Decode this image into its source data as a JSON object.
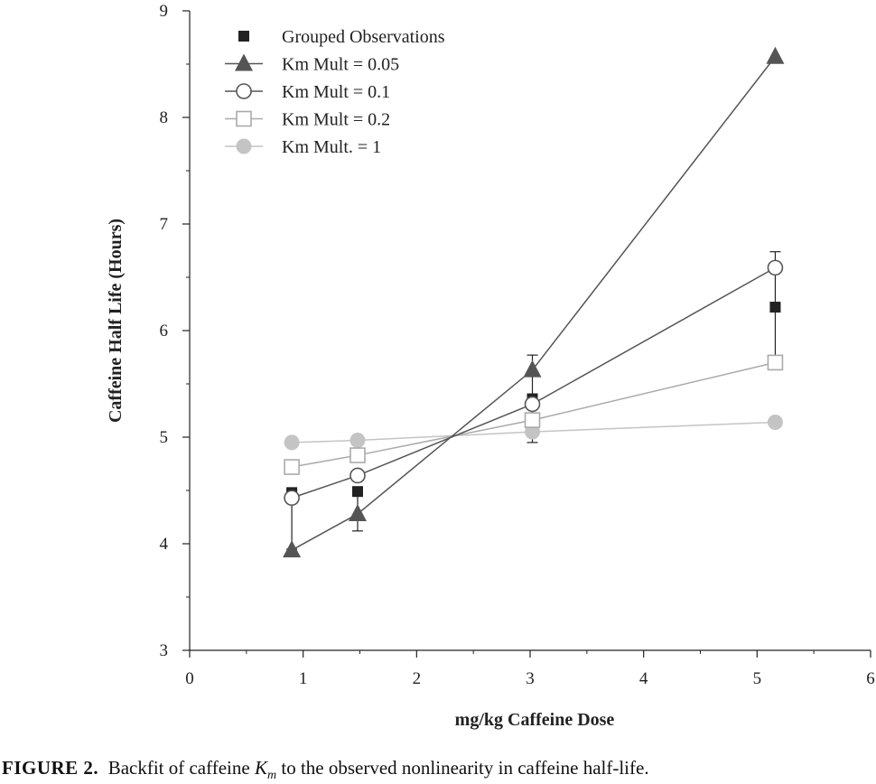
{
  "chart_data": {
    "type": "line",
    "xlabel": "mg/kg Caffeine Dose",
    "ylabel": "Caffeine Half Life (Hours)",
    "xlim": [
      0,
      6
    ],
    "ylim": [
      3,
      9
    ],
    "xticks": [
      "0",
      "1",
      "2",
      "3",
      "4",
      "5",
      "6"
    ],
    "yticks": [
      "3",
      "4",
      "5",
      "6",
      "7",
      "8",
      "9"
    ],
    "grid": false,
    "legend_position": "top-left",
    "series": [
      {
        "name": "Grouped Observations",
        "marker": "square-filled",
        "color": "#222222",
        "line": false,
        "x": [
          0.9,
          1.48,
          3.02,
          5.16
        ],
        "y": [
          4.48,
          4.49,
          5.36,
          6.22
        ],
        "error_y": [
          {
            "low": 3.95,
            "high": 4.5
          },
          {
            "low": 4.12,
            "high": 4.49
          },
          {
            "low": 4.95,
            "high": 5.77
          },
          {
            "low": 5.75,
            "high": 6.74
          }
        ]
      },
      {
        "name": "Km Mult = 0.05",
        "marker": "triangle-filled",
        "color": "#555555",
        "line": true,
        "x": [
          0.9,
          1.48,
          3.02,
          5.16
        ],
        "y": [
          3.94,
          4.28,
          5.63,
          8.57
        ]
      },
      {
        "name": "Km Mult = 0.1",
        "marker": "circle-open",
        "color": "#555555",
        "line": true,
        "x": [
          0.9,
          1.48,
          3.02,
          5.16
        ],
        "y": [
          4.43,
          4.64,
          5.31,
          6.59
        ]
      },
      {
        "name": "Km Mult = 0.2",
        "marker": "square-open",
        "color": "#aaaaaa",
        "line": true,
        "x": [
          0.9,
          1.48,
          3.02,
          5.16
        ],
        "y": [
          4.72,
          4.83,
          5.16,
          5.7
        ]
      },
      {
        "name": "Km Mult. = 1",
        "marker": "circle-filled",
        "color": "#c4c4c4",
        "line": true,
        "x": [
          0.9,
          1.48,
          3.02,
          5.16
        ],
        "y": [
          4.95,
          4.97,
          5.05,
          5.14
        ]
      }
    ]
  },
  "caption": {
    "label": "FIGURE 2.",
    "text_before": "Backfit of caffeine",
    "km_base": "K",
    "km_sub": "m",
    "text_after": "to the observed nonlinearity in caffeine half-life."
  }
}
